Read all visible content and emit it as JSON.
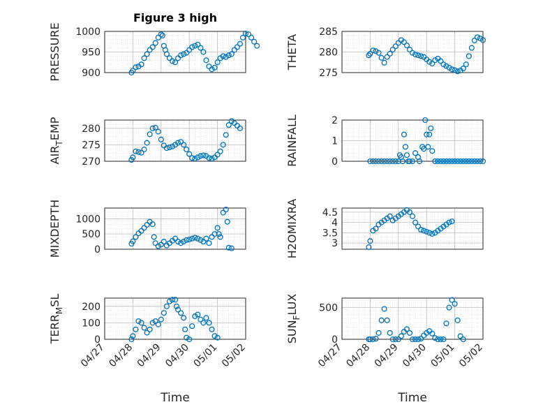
{
  "figure": {
    "title": "Figure 3 high"
  },
  "colors": {
    "marker": "#0072BD",
    "axis": "#262626",
    "grid": "#bfbfbf"
  },
  "x_axis": {
    "label": "Time",
    "range": [
      "04/27",
      "05/02"
    ],
    "ticks": [
      "04/27",
      "04/28",
      "04/29",
      "04/30",
      "05/01",
      "05/02"
    ]
  },
  "chart_data": [
    {
      "type": "scatter",
      "ylabel": "PRESSURE",
      "ylim": [
        900,
        1000
      ],
      "yticks": [
        900,
        950,
        1000
      ],
      "grid": "major+minor",
      "marker": "open-circle",
      "points": [
        [
          0.95,
          900
        ],
        [
          1.0,
          905
        ],
        [
          1.1,
          913
        ],
        [
          1.2,
          915
        ],
        [
          1.3,
          920
        ],
        [
          1.4,
          935
        ],
        [
          1.5,
          945
        ],
        [
          1.6,
          955
        ],
        [
          1.7,
          962
        ],
        [
          1.8,
          972
        ],
        [
          1.9,
          985
        ],
        [
          2.0,
          993
        ],
        [
          2.05,
          990
        ],
        [
          2.1,
          965
        ],
        [
          2.15,
          955
        ],
        [
          2.2,
          945
        ],
        [
          2.3,
          935
        ],
        [
          2.4,
          928
        ],
        [
          2.5,
          925
        ],
        [
          2.6,
          935
        ],
        [
          2.7,
          942
        ],
        [
          2.8,
          945
        ],
        [
          2.9,
          948
        ],
        [
          3.0,
          955
        ],
        [
          3.1,
          962
        ],
        [
          3.2,
          965
        ],
        [
          3.3,
          968
        ],
        [
          3.4,
          960
        ],
        [
          3.5,
          950
        ],
        [
          3.6,
          930
        ],
        [
          3.7,
          915
        ],
        [
          3.8,
          908
        ],
        [
          3.9,
          912
        ],
        [
          4.0,
          925
        ],
        [
          4.1,
          935
        ],
        [
          4.2,
          940
        ],
        [
          4.3,
          938
        ],
        [
          4.4,
          942
        ],
        [
          4.5,
          945
        ],
        [
          4.6,
          955
        ],
        [
          4.7,
          962
        ],
        [
          4.8,
          970
        ],
        [
          4.9,
          985
        ],
        [
          5.0,
          995
        ],
        [
          5.1,
          993
        ],
        [
          5.2,
          985
        ],
        [
          5.3,
          975
        ],
        [
          5.4,
          965
        ]
      ]
    },
    {
      "type": "scatter",
      "ylabel": "THETA",
      "ylim": [
        275,
        285
      ],
      "yticks": [
        275,
        280,
        285
      ],
      "grid": "major+minor",
      "marker": "open-circle",
      "points": [
        [
          0.95,
          279.2
        ],
        [
          1.0,
          279.6
        ],
        [
          1.1,
          280.4
        ],
        [
          1.2,
          280.2
        ],
        [
          1.3,
          279.8
        ],
        [
          1.4,
          278.6
        ],
        [
          1.5,
          277.4
        ],
        [
          1.6,
          278.8
        ],
        [
          1.7,
          279.6
        ],
        [
          1.8,
          280.6
        ],
        [
          1.9,
          281.4
        ],
        [
          2.0,
          282.2
        ],
        [
          2.1,
          282.9
        ],
        [
          2.2,
          282.4
        ],
        [
          2.3,
          281.6
        ],
        [
          2.4,
          280.6
        ],
        [
          2.5,
          279.8
        ],
        [
          2.6,
          279.4
        ],
        [
          2.7,
          279.2
        ],
        [
          2.8,
          279.0
        ],
        [
          2.9,
          278.8
        ],
        [
          3.0,
          278.2
        ],
        [
          3.1,
          277.6
        ],
        [
          3.2,
          277.2
        ],
        [
          3.3,
          278.0
        ],
        [
          3.4,
          278.4
        ],
        [
          3.5,
          277.8
        ],
        [
          3.6,
          277.0
        ],
        [
          3.7,
          276.6
        ],
        [
          3.8,
          276.2
        ],
        [
          3.9,
          275.8
        ],
        [
          4.0,
          275.6
        ],
        [
          4.1,
          275.3
        ],
        [
          4.2,
          275.5
        ],
        [
          4.3,
          276.0
        ],
        [
          4.4,
          277.0
        ],
        [
          4.5,
          279.0
        ],
        [
          4.6,
          281.0
        ],
        [
          4.7,
          282.8
        ],
        [
          4.8,
          283.6
        ],
        [
          4.9,
          283.3
        ],
        [
          5.0,
          282.9
        ]
      ]
    },
    {
      "type": "scatter",
      "ylabel": "AIR_TEMP",
      "ylim": [
        270,
        282.5
      ],
      "yticks": [
        270,
        275,
        280
      ],
      "grid": "major+minor",
      "marker": "open-circle",
      "points": [
        [
          0.95,
          270.4
        ],
        [
          1.0,
          271.2
        ],
        [
          1.1,
          273.0
        ],
        [
          1.2,
          272.8
        ],
        [
          1.3,
          272.6
        ],
        [
          1.4,
          273.6
        ],
        [
          1.5,
          275.6
        ],
        [
          1.6,
          278.2
        ],
        [
          1.7,
          280.0
        ],
        [
          1.8,
          280.2
        ],
        [
          1.9,
          279.0
        ],
        [
          2.0,
          276.6
        ],
        [
          2.1,
          274.8
        ],
        [
          2.2,
          274.0
        ],
        [
          2.3,
          274.2
        ],
        [
          2.4,
          274.5
        ],
        [
          2.5,
          275.0
        ],
        [
          2.6,
          275.6
        ],
        [
          2.7,
          275.9
        ],
        [
          2.8,
          275.0
        ],
        [
          2.9,
          273.6
        ],
        [
          3.0,
          272.2
        ],
        [
          3.1,
          271.0
        ],
        [
          3.2,
          270.8
        ],
        [
          3.3,
          271.2
        ],
        [
          3.4,
          271.6
        ],
        [
          3.5,
          271.8
        ],
        [
          3.6,
          271.6
        ],
        [
          3.7,
          271.0
        ],
        [
          3.8,
          270.8
        ],
        [
          3.9,
          271.2
        ],
        [
          4.0,
          272.0
        ],
        [
          4.1,
          273.0
        ],
        [
          4.2,
          275.0
        ],
        [
          4.3,
          278.0
        ],
        [
          4.4,
          281.0
        ],
        [
          4.5,
          282.2
        ],
        [
          4.6,
          281.6
        ],
        [
          4.7,
          280.8
        ],
        [
          4.8,
          280.0
        ]
      ]
    },
    {
      "type": "scatter",
      "ylabel": "RAINFALL",
      "ylim": [
        0,
        2
      ],
      "yticks": [
        0,
        1,
        2
      ],
      "grid": "major+minor",
      "marker": "open-circle",
      "points": [
        [
          1.0,
          0
        ],
        [
          1.1,
          0
        ],
        [
          1.2,
          0
        ],
        [
          1.3,
          0
        ],
        [
          1.4,
          0
        ],
        [
          1.5,
          0
        ],
        [
          1.6,
          0
        ],
        [
          1.7,
          0
        ],
        [
          1.8,
          0
        ],
        [
          1.9,
          0
        ],
        [
          2.0,
          0
        ],
        [
          2.05,
          0.3
        ],
        [
          2.1,
          0.2
        ],
        [
          2.15,
          0
        ],
        [
          2.2,
          1.3
        ],
        [
          2.25,
          0.7
        ],
        [
          2.3,
          0.3
        ],
        [
          2.35,
          0
        ],
        [
          2.4,
          0
        ],
        [
          2.5,
          0
        ],
        [
          2.6,
          0.4
        ],
        [
          2.7,
          0.2
        ],
        [
          2.75,
          0
        ],
        [
          2.85,
          0.7
        ],
        [
          2.9,
          0.6
        ],
        [
          2.95,
          2.0
        ],
        [
          3.0,
          1.3
        ],
        [
          3.05,
          0.7
        ],
        [
          3.1,
          1.3
        ],
        [
          3.15,
          1.6
        ],
        [
          3.2,
          0.5
        ],
        [
          3.3,
          0
        ],
        [
          3.4,
          0
        ],
        [
          3.5,
          0
        ],
        [
          3.6,
          0
        ],
        [
          3.7,
          0
        ],
        [
          3.8,
          0
        ],
        [
          3.9,
          0
        ],
        [
          4.0,
          0
        ],
        [
          4.1,
          0
        ],
        [
          4.2,
          0
        ],
        [
          4.3,
          0
        ],
        [
          4.4,
          0
        ],
        [
          4.5,
          0
        ],
        [
          4.6,
          0
        ],
        [
          4.7,
          0
        ],
        [
          4.8,
          0
        ],
        [
          4.9,
          0
        ],
        [
          5.0,
          0
        ]
      ]
    },
    {
      "type": "scatter",
      "ylabel": "MIXDEPTH",
      "ylim": [
        0,
        1350
      ],
      "yticks": [
        0,
        500,
        1000
      ],
      "grid": "major+minor",
      "marker": "open-circle",
      "points": [
        [
          0.95,
          180
        ],
        [
          1.0,
          260
        ],
        [
          1.1,
          400
        ],
        [
          1.2,
          520
        ],
        [
          1.3,
          600
        ],
        [
          1.4,
          700
        ],
        [
          1.5,
          800
        ],
        [
          1.6,
          900
        ],
        [
          1.7,
          820
        ],
        [
          1.75,
          400
        ],
        [
          1.8,
          200
        ],
        [
          1.9,
          100
        ],
        [
          2.0,
          150
        ],
        [
          2.1,
          250
        ],
        [
          2.2,
          120
        ],
        [
          2.3,
          200
        ],
        [
          2.4,
          280
        ],
        [
          2.5,
          350
        ],
        [
          2.6,
          250
        ],
        [
          2.7,
          200
        ],
        [
          2.8,
          250
        ],
        [
          2.9,
          300
        ],
        [
          3.0,
          320
        ],
        [
          3.1,
          350
        ],
        [
          3.2,
          380
        ],
        [
          3.3,
          350
        ],
        [
          3.4,
          300
        ],
        [
          3.5,
          250
        ],
        [
          3.6,
          350
        ],
        [
          3.7,
          200
        ],
        [
          3.8,
          400
        ],
        [
          3.9,
          500
        ],
        [
          4.0,
          700
        ],
        [
          4.05,
          500
        ],
        [
          4.1,
          400
        ],
        [
          4.2,
          1200
        ],
        [
          4.3,
          1300
        ],
        [
          4.35,
          900
        ],
        [
          4.4,
          50
        ],
        [
          4.5,
          30
        ]
      ]
    },
    {
      "type": "scatter",
      "ylabel": "H2OMIXRA",
      "ylim": [
        2.7,
        4.7
      ],
      "yticks": [
        3,
        3.5,
        4,
        4.5
      ],
      "grid": "major+minor",
      "marker": "open-circle",
      "points": [
        [
          0.95,
          2.8
        ],
        [
          1.0,
          3.1
        ],
        [
          1.1,
          3.6
        ],
        [
          1.2,
          3.7
        ],
        [
          1.3,
          3.9
        ],
        [
          1.4,
          4.0
        ],
        [
          1.5,
          4.1
        ],
        [
          1.6,
          4.2
        ],
        [
          1.7,
          4.3
        ],
        [
          1.8,
          4.1
        ],
        [
          1.9,
          4.2
        ],
        [
          2.0,
          4.3
        ],
        [
          2.1,
          4.4
        ],
        [
          2.2,
          4.5
        ],
        [
          2.3,
          4.6
        ],
        [
          2.4,
          4.5
        ],
        [
          2.5,
          4.3
        ],
        [
          2.6,
          4.0
        ],
        [
          2.7,
          3.8
        ],
        [
          2.8,
          3.65
        ],
        [
          2.9,
          3.6
        ],
        [
          3.0,
          3.55
        ],
        [
          3.1,
          3.5
        ],
        [
          3.2,
          3.45
        ],
        [
          3.3,
          3.5
        ],
        [
          3.4,
          3.6
        ],
        [
          3.5,
          3.7
        ],
        [
          3.6,
          3.8
        ],
        [
          3.7,
          3.9
        ],
        [
          3.8,
          4.0
        ],
        [
          3.9,
          4.05
        ]
      ]
    },
    {
      "type": "scatter",
      "ylabel": "TERR_MSL",
      "ylim": [
        0,
        250
      ],
      "yticks": [
        0,
        100,
        200
      ],
      "grid": "major+minor",
      "marker": "open-circle",
      "points": [
        [
          0.95,
          0
        ],
        [
          1.0,
          20
        ],
        [
          1.1,
          60
        ],
        [
          1.2,
          110
        ],
        [
          1.3,
          100
        ],
        [
          1.4,
          70
        ],
        [
          1.5,
          40
        ],
        [
          1.6,
          60
        ],
        [
          1.7,
          100
        ],
        [
          1.8,
          110
        ],
        [
          1.9,
          90
        ],
        [
          2.0,
          120
        ],
        [
          2.1,
          160
        ],
        [
          2.2,
          200
        ],
        [
          2.3,
          230
        ],
        [
          2.4,
          240
        ],
        [
          2.5,
          240
        ],
        [
          2.55,
          200
        ],
        [
          2.6,
          180
        ],
        [
          2.7,
          160
        ],
        [
          2.8,
          130
        ],
        [
          2.85,
          60
        ],
        [
          2.9,
          10
        ],
        [
          3.0,
          0
        ],
        [
          3.1,
          80
        ],
        [
          3.2,
          140
        ],
        [
          3.3,
          150
        ],
        [
          3.4,
          120
        ],
        [
          3.5,
          100
        ],
        [
          3.6,
          130
        ],
        [
          3.7,
          100
        ],
        [
          3.8,
          60
        ],
        [
          3.9,
          20
        ],
        [
          4.0,
          10
        ]
      ]
    },
    {
      "type": "scatter",
      "ylabel": "SUN_FLUX",
      "ylim": [
        0,
        650
      ],
      "yticks": [
        0,
        500
      ],
      "grid": "major+minor",
      "marker": "open-circle",
      "points": [
        [
          0.95,
          0
        ],
        [
          1.0,
          0
        ],
        [
          1.1,
          0
        ],
        [
          1.2,
          10
        ],
        [
          1.3,
          100
        ],
        [
          1.4,
          300
        ],
        [
          1.5,
          480
        ],
        [
          1.6,
          300
        ],
        [
          1.7,
          100
        ],
        [
          1.8,
          0
        ],
        [
          1.9,
          0
        ],
        [
          2.0,
          0
        ],
        [
          2.1,
          50
        ],
        [
          2.2,
          120
        ],
        [
          2.3,
          160
        ],
        [
          2.4,
          100
        ],
        [
          2.5,
          0
        ],
        [
          2.6,
          0
        ],
        [
          2.7,
          0
        ],
        [
          2.8,
          10
        ],
        [
          2.9,
          60
        ],
        [
          3.0,
          100
        ],
        [
          3.1,
          130
        ],
        [
          3.2,
          90
        ],
        [
          3.3,
          20
        ],
        [
          3.4,
          0
        ],
        [
          3.5,
          0
        ],
        [
          3.6,
          0
        ],
        [
          3.7,
          250
        ],
        [
          3.8,
          500
        ],
        [
          3.9,
          620
        ],
        [
          4.0,
          560
        ],
        [
          4.1,
          300
        ],
        [
          4.2,
          50
        ],
        [
          4.3,
          0
        ]
      ]
    }
  ]
}
